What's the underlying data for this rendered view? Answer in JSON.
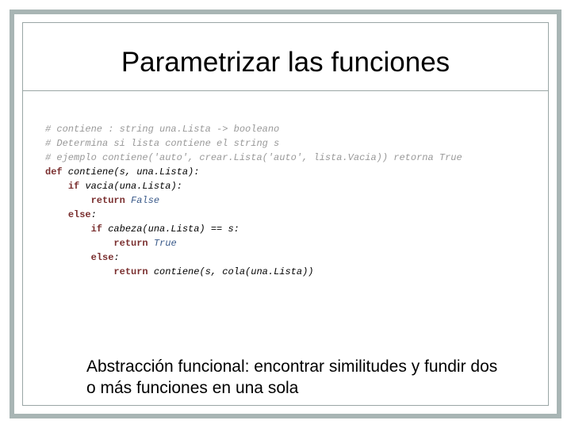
{
  "slide": {
    "title": "Parametrizar las funciones",
    "body_text": "Abstracción funcional: encontrar similitudes y fundir dos o más  funciones en una sola",
    "colors": {
      "frame_border": "#a8b5b4",
      "inner_border": "#9aa6a5",
      "background": "#ffffff",
      "title_text": "#000000",
      "body_text": "#000000"
    },
    "title_fontsize": 35,
    "body_fontsize": 21
  },
  "code": {
    "font_family": "Courier New",
    "font_size": 12,
    "line_height": 1.5,
    "colors": {
      "comment": "#999999",
      "keyword": "#7a2f2f",
      "bool": "#3a5a8a",
      "normal": "#000000"
    },
    "lines": {
      "c1": "# contiene : string una.Lista -> booleano",
      "c2": "# Determina si lista contiene el string s",
      "c3": "# ejemplo contiene('auto', crear.Lista('auto', lista.Vacia)) retorna True",
      "kw_def": "def",
      "def_rest": " contiene(s, una.Lista):",
      "kw_if1": "if",
      "if1_rest": " vacia(una.Lista):",
      "kw_ret1": "return",
      "false_val": " False",
      "kw_else1": "else",
      "else1_rest": ":",
      "kw_if2": "if",
      "if2_rest": " cabeza(una.Lista) == s:",
      "kw_ret2": "return",
      "true_val": " True",
      "kw_else2": "else",
      "else2_rest": ":",
      "kw_ret3": "return",
      "ret3_rest": " contiene(s, cola(una.Lista))"
    },
    "indent": {
      "i0": "",
      "i1": "    ",
      "i2": "        ",
      "i3": "            "
    }
  }
}
